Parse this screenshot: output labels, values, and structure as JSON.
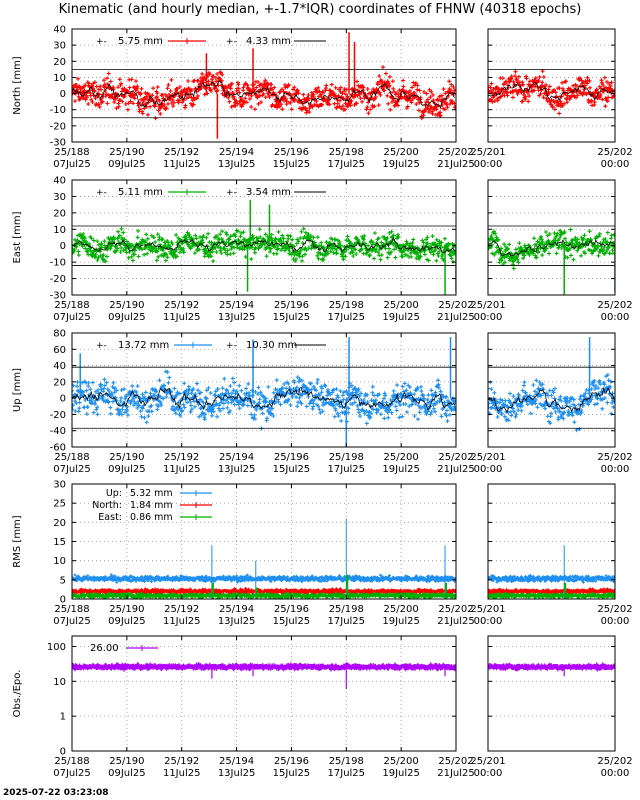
{
  "title": "Kinematic (and hourly median, +-1.7*IQR) coordinates of FHNW (40318 epochs)",
  "timestamp": "2025-07-22 03:23:08",
  "colors": {
    "north": "#ff0000",
    "east": "#00b000",
    "up": "#1e8ff0",
    "obs": "#b000ff",
    "median": "#000000"
  },
  "chart_data": [
    {
      "type": "scatter",
      "name": "north",
      "ylabel": "North [mm]",
      "ylim": [
        -30,
        40
      ],
      "yticks": [
        -30,
        -20,
        -10,
        0,
        10,
        20,
        30,
        40
      ],
      "hlines": [
        -15,
        15
      ],
      "series": [
        {
          "name": "5.75 mm",
          "color": "#ff0000",
          "spread": 5.75
        },
        {
          "name": "4.33 mm",
          "color": "#000000",
          "spread": 4.33
        }
      ],
      "spikes": [
        [
          193.3,
          -28
        ],
        [
          194.6,
          28
        ],
        [
          198.1,
          38
        ],
        [
          198.3,
          32
        ],
        [
          192.9,
          25
        ]
      ]
    },
    {
      "type": "scatter",
      "name": "east",
      "ylabel": "East [mm]",
      "ylim": [
        -30,
        40
      ],
      "yticks": [
        -30,
        -20,
        -10,
        0,
        10,
        20,
        30,
        40
      ],
      "hlines": [
        -12,
        12
      ],
      "series": [
        {
          "name": "5.11 mm",
          "color": "#00b000",
          "spread": 5.11
        },
        {
          "name": "3.54 mm",
          "color": "#000000",
          "spread": 3.54
        }
      ],
      "spikes": [
        [
          194.5,
          28
        ],
        [
          194.4,
          -28
        ],
        [
          201.6,
          -30
        ],
        [
          202.0,
          -28
        ],
        [
          195.2,
          25
        ]
      ]
    },
    {
      "type": "scatter",
      "name": "up",
      "ylabel": "Up [mm]",
      "ylim": [
        -60,
        80
      ],
      "yticks": [
        -60,
        -40,
        -20,
        0,
        20,
        40,
        60,
        80
      ],
      "hlines": [
        -37,
        38
      ],
      "series": [
        {
          "name": "13.72 mm",
          "color": "#1e8ff0",
          "spread": 13.72
        },
        {
          "name": "10.30 mm",
          "color": "#000000",
          "spread": 10.3
        }
      ],
      "spikes": [
        [
          198.0,
          -60
        ],
        [
          198.1,
          75
        ],
        [
          201.8,
          75
        ],
        [
          188.3,
          55
        ],
        [
          194.6,
          72
        ]
      ]
    },
    {
      "type": "scatter",
      "name": "rms",
      "ylabel": "RMS [mm]",
      "ylim": [
        0,
        30
      ],
      "yticks": [
        0,
        5,
        10,
        15,
        20,
        25,
        30
      ],
      "series": [
        {
          "name": "Up:",
          "value_label": "5.32 mm",
          "color": "#1e8ff0",
          "level": 5.3
        },
        {
          "name": "North:",
          "value_label": "1.84 mm",
          "color": "#ff0000",
          "level": 2.0
        },
        {
          "name": "East:",
          "value_label": "0.86 mm",
          "color": "#00b000",
          "level": 0.9
        }
      ],
      "spikes": [
        [
          193.1,
          14
        ],
        [
          198.0,
          21
        ],
        [
          201.6,
          14
        ],
        [
          202.0,
          12
        ],
        [
          194.7,
          10
        ]
      ]
    },
    {
      "type": "scatter",
      "name": "obs",
      "ylabel": "Obs./Epo.",
      "yscale": "log",
      "ylim": [
        0.1,
        200
      ],
      "ytick_values": [
        0.1,
        1,
        10,
        100
      ],
      "ytick_labels": [
        "0",
        "1",
        "10",
        "100"
      ],
      "series": [
        {
          "name": "26.00",
          "color": "#b000ff",
          "level": 26
        }
      ],
      "spikes": [
        [
          193.1,
          12
        ],
        [
          198.0,
          6
        ],
        [
          194.6,
          14
        ],
        [
          201.6,
          14
        ]
      ]
    }
  ],
  "x_left": {
    "xlim": [
      188,
      202
    ],
    "ticks": [
      188,
      190,
      192,
      194,
      196,
      198,
      200,
      202
    ],
    "labels_top": [
      "25/188",
      "25/190",
      "25/192",
      "25/194",
      "25/196",
      "25/198",
      "25/200",
      "25/202"
    ],
    "labels_bottom": [
      "07Jul25",
      "09Jul25",
      "11Jul25",
      "13Jul25",
      "15Jul25",
      "17Jul25",
      "19Jul25",
      "21Jul25"
    ]
  },
  "x_right": {
    "xlim": [
      201,
      202
    ],
    "ticks": [
      201,
      202
    ],
    "labels_top": [
      "25/201",
      "25/202"
    ],
    "labels_bottom": [
      "00:00",
      "00:00"
    ]
  }
}
